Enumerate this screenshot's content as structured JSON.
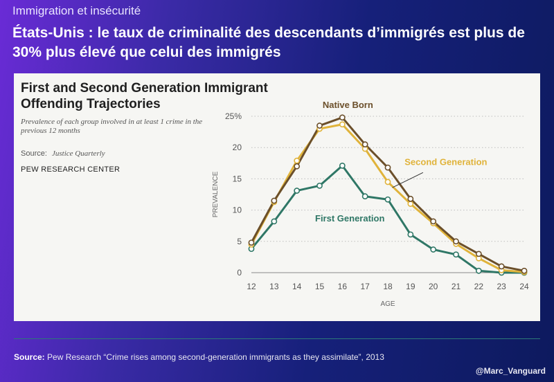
{
  "header": {
    "topic": "Immigration et insécurité",
    "headline": "États-Unis : le taux de criminalité des descendants d’immigrés est plus de 30% plus élevé que celui des immigrés"
  },
  "chart_data": {
    "type": "line",
    "title": "First and Second Generation Immigrant Offending Trajectories",
    "subtitle": "Prevalence of each group involved in at least 1 crime in the previous 12 months",
    "source_label": "Source:",
    "source_value": "Justice Quarterly",
    "organization": "PEW RESEARCH CENTER",
    "xlabel": "AGE",
    "ylabel": "PREVALENCE",
    "x": [
      12,
      13,
      14,
      15,
      16,
      17,
      18,
      19,
      20,
      21,
      22,
      23,
      24
    ],
    "xlim": [
      12,
      24
    ],
    "ylim": [
      0,
      25
    ],
    "yticks": [
      "0",
      "5",
      "10",
      "15",
      "20",
      "25%"
    ],
    "grid": "horizontal-dotted",
    "series": [
      {
        "name": "Native Born",
        "color": "#6b4f2a",
        "values": [
          4.8,
          11.5,
          17.0,
          23.5,
          24.8,
          20.5,
          16.8,
          11.8,
          8.2,
          5.0,
          3.0,
          1.0,
          0.3
        ]
      },
      {
        "name": "Second Generation",
        "color": "#e0b33a",
        "values": [
          4.5,
          11.3,
          17.9,
          23.0,
          23.7,
          19.8,
          14.5,
          11.0,
          7.9,
          4.6,
          2.3,
          0.4,
          0.1
        ]
      },
      {
        "name": "First Generation",
        "color": "#2f7766",
        "values": [
          3.8,
          8.2,
          13.1,
          13.9,
          17.1,
          12.2,
          11.7,
          6.1,
          3.7,
          2.9,
          0.3,
          0.0,
          0.0
        ]
      }
    ]
  },
  "footer": {
    "source_label": "Source:",
    "source_text": "Pew Research “Crime rises among second-generation immigrants as they assimilate”, 2013",
    "handle": "@Marc_Vanguard"
  }
}
